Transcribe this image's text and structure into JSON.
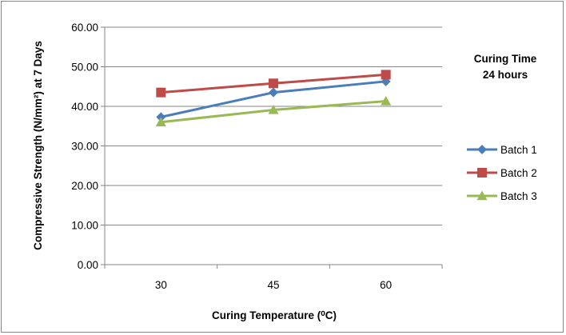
{
  "chart_data": {
    "type": "line",
    "categories": [
      "30",
      "45",
      "60"
    ],
    "series": [
      {
        "name": "Batch 1",
        "values": [
          37.3,
          43.5,
          46.3
        ],
        "color": "#4A7EBB",
        "marker": "diamond"
      },
      {
        "name": "Batch 2",
        "values": [
          43.5,
          45.8,
          48.0
        ],
        "color": "#BE4B48",
        "marker": "square"
      },
      {
        "name": "Batch 3",
        "values": [
          36.0,
          39.1,
          41.3
        ],
        "color": "#98B954",
        "marker": "triangle"
      }
    ],
    "yticks": [
      "0.00",
      "10.00",
      "20.00",
      "30.00",
      "40.00",
      "50.00",
      "60.00"
    ],
    "ylim": [
      0,
      60
    ],
    "xlabel": "Curing Temperature (⁰C)",
    "ylabel": "Compressive Strength (N/mm²) at 7 Days",
    "annotation": [
      "Curing Time",
      "24 hours"
    ],
    "grid": "horizontal",
    "legend": "right"
  }
}
